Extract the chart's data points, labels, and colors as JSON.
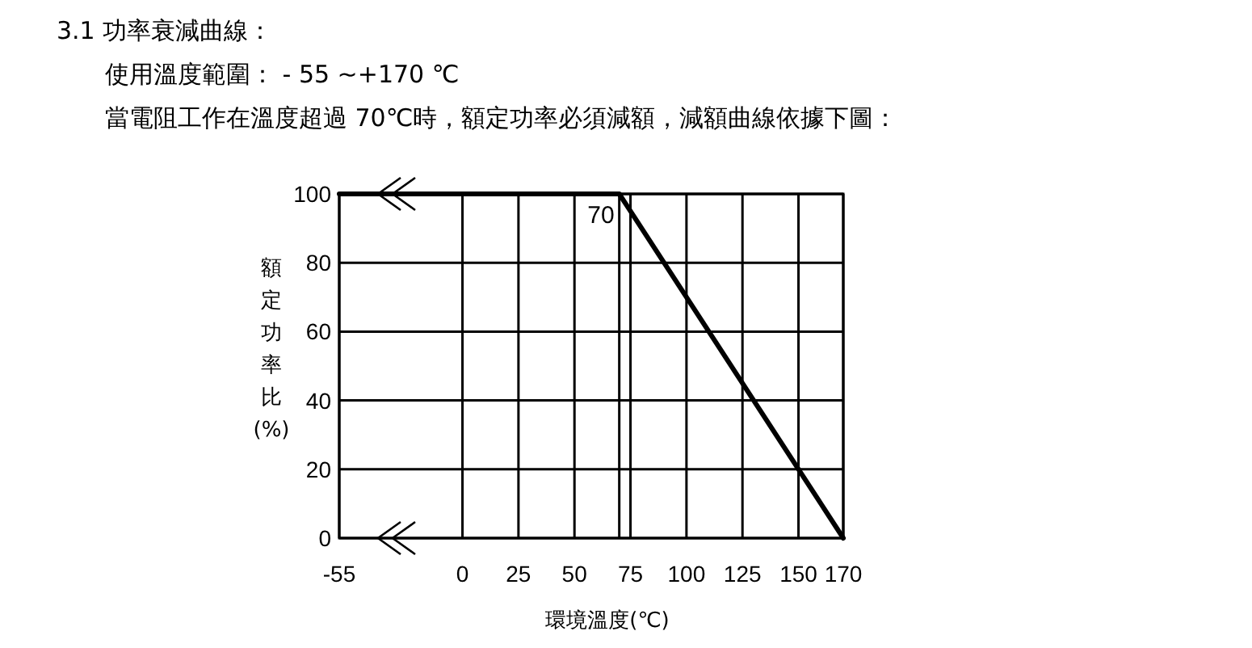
{
  "chart_data": {
    "type": "line",
    "title": "3.1 功率衰減曲線：",
    "subtitle": "使用溫度範圍： - 55 ~+170 ℃",
    "annotations": [
      "當電阻工作在溫度超過 70℃時，額定功率必須減額，減額曲線依據下圖：",
      {
        "text": "70",
        "x": 70,
        "y": 100
      }
    ],
    "xlabel": "環境溫度(℃)",
    "ylabel": "額定功率比(%)",
    "x": [
      -55,
      70,
      170
    ],
    "series": [
      {
        "color": "#000000",
        "values": [
          100,
          100,
          0
        ]
      }
    ],
    "xlim": [
      -55,
      170
    ],
    "xticks": [
      -55,
      0,
      25,
      50,
      {
        "value": 70,
        "label": null
      },
      75,
      100,
      125,
      150,
      170
    ],
    "ylim": [
      0,
      100
    ],
    "yticks": [
      0,
      20,
      40,
      60,
      80,
      100
    ],
    "grid": true,
    "line_style": "solid"
  }
}
